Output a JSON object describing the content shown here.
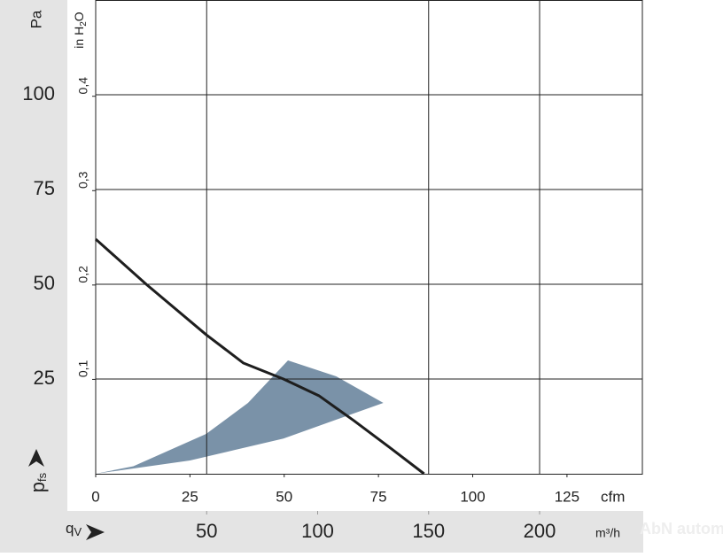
{
  "chart_data": {
    "type": "line",
    "y_label": "Pa",
    "y2_label": "in H",
    "y2_label_sub": "2",
    "y2_label_end": "O",
    "y_symbol": "p",
    "y_symbol_sub": "fs",
    "x_symbol": "q",
    "x_symbol_sub": "V",
    "x_label": "cfm",
    "x2_label": "m³/h",
    "watermark": "AbN automation",
    "xlim": [
      0,
      145
    ],
    "xticks": [
      0,
      25,
      50,
      75,
      100,
      125
    ],
    "x2lim": [
      0,
      246.3
    ],
    "x2ticks": [
      50,
      100,
      150,
      200
    ],
    "x2grid": [
      50,
      150,
      200
    ],
    "ylim": [
      0,
      125
    ],
    "yticks": [
      25,
      50,
      75,
      100
    ],
    "y2lim": [
      0,
      0.502
    ],
    "y2ticks": [
      {
        "value": 0.1,
        "label": "0,1"
      },
      {
        "value": 0.2,
        "label": "0,2"
      },
      {
        "value": 0.3,
        "label": "0,3"
      },
      {
        "value": 0.4,
        "label": "0,4"
      }
    ],
    "grid": true,
    "range": {
      "color": "#7a92a8",
      "x": [
        0,
        25,
        49.8,
        76.3,
        63.8,
        51,
        40.4,
        29.3,
        10
      ],
      "values": [
        0,
        3.5,
        9.3,
        18.7,
        25.7,
        29.9,
        18.7,
        10.5,
        2
      ]
    },
    "curve": {
      "color": "#1e1e1e",
      "x": [
        0,
        13.4,
        29.3,
        39.2,
        49.8,
        59.2,
        68.5,
        77.9,
        87.1
      ],
      "values": [
        61.9,
        50,
        36.7,
        29.2,
        25,
        20.6,
        14,
        7,
        0
      ]
    }
  }
}
